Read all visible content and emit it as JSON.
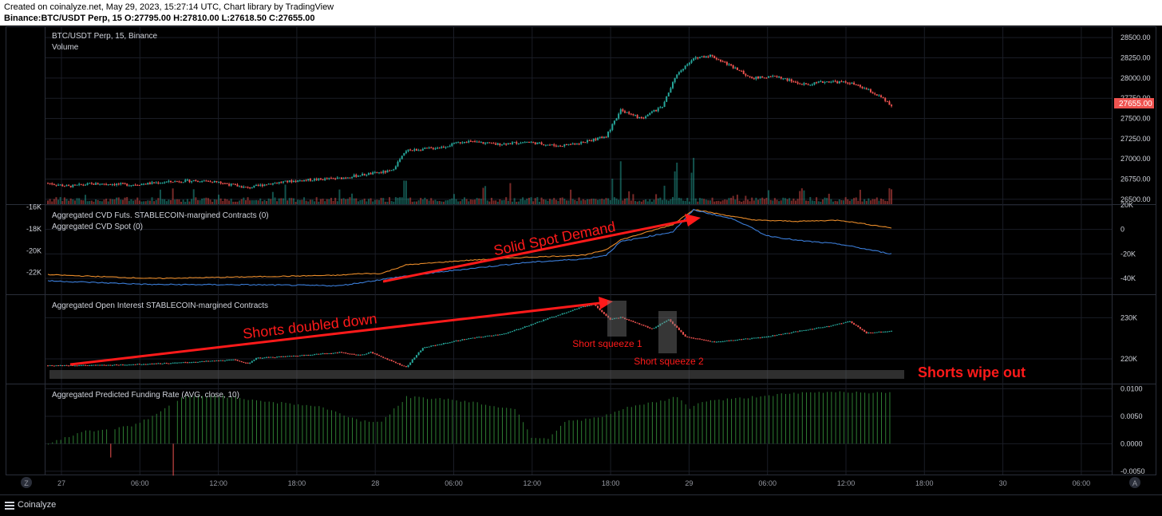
{
  "header": {
    "created": "Created on coinalyze.net, May 29, 2023, 15:27:14 UTC, Chart library by TradingView",
    "ohlc": "Binance:BTC/USDT Perp, 15 O:27795.00 H:27810.00 L:27618.50 C:27655.00"
  },
  "footer": {
    "brand": "Coinalyze",
    "z_button": "Z",
    "a_button": "A"
  },
  "colors": {
    "up": "#26a69a",
    "down": "#ef5350",
    "cvd_futs": "#e88b2a",
    "cvd_spot": "#3b7dd8",
    "annotation": "#ff1a1a",
    "funding": "#2e7d32"
  },
  "chart_data": [
    {
      "type": "candlestick",
      "pane": "price",
      "legend": [
        "BTC/USDT Perp, 15, Binance",
        "Volume"
      ],
      "y_ticks": [
        "28500.00",
        "28250.00",
        "28000.00",
        "27750.00",
        "27500.00",
        "27250.00",
        "27000.00",
        "26750.00",
        "26500.00"
      ],
      "ylim": [
        26440,
        28630
      ],
      "last_price_label": "27655.00",
      "x_ticks": [
        "27",
        "06:00",
        "12:00",
        "18:00",
        "28",
        "06:00",
        "12:00",
        "18:00",
        "29",
        "06:00",
        "12:00",
        "18:00",
        "30",
        "06:00"
      ],
      "price_path": [
        [
          0,
          26700
        ],
        [
          10,
          26660
        ],
        [
          20,
          26690
        ],
        [
          30,
          26690
        ],
        [
          40,
          26680
        ],
        [
          50,
          26700
        ],
        [
          60,
          26720
        ],
        [
          70,
          26730
        ],
        [
          80,
          26720
        ],
        [
          96,
          26640
        ],
        [
          105,
          26690
        ],
        [
          115,
          26720
        ],
        [
          125,
          26740
        ],
        [
          140,
          26760
        ],
        [
          150,
          26800
        ],
        [
          165,
          26850
        ],
        [
          172,
          27100
        ],
        [
          180,
          27120
        ],
        [
          190,
          27150
        ],
        [
          200,
          27220
        ],
        [
          215,
          27180
        ],
        [
          230,
          27210
        ],
        [
          245,
          27160
        ],
        [
          258,
          27210
        ],
        [
          268,
          27280
        ],
        [
          275,
          27600
        ],
        [
          285,
          27500
        ],
        [
          295,
          27650
        ],
        [
          302,
          28050
        ],
        [
          310,
          28250
        ],
        [
          318,
          28280
        ],
        [
          328,
          28150
        ],
        [
          338,
          28000
        ],
        [
          350,
          28020
        ],
        [
          362,
          27920
        ],
        [
          375,
          27960
        ],
        [
          385,
          27940
        ],
        [
          393,
          27860
        ],
        [
          400,
          27760
        ],
        [
          405,
          27655
        ]
      ],
      "volume_spikes": [
        [
          70,
          0.45
        ],
        [
          172,
          0.55
        ],
        [
          210,
          0.4
        ],
        [
          258,
          0.35
        ],
        [
          270,
          0.45
        ],
        [
          275,
          1.0
        ],
        [
          280,
          0.3
        ],
        [
          302,
          0.9
        ],
        [
          310,
          0.9
        ],
        [
          330,
          0.25
        ],
        [
          362,
          0.35
        ],
        [
          405,
          0.35
        ]
      ]
    },
    {
      "type": "line",
      "pane": "cvd",
      "series": [
        {
          "name": "Aggregated CVD Futs. STABLECOIN-margined Contracts (0)",
          "axis": "left",
          "values": [
            [
              0,
              -22200
            ],
            [
              50,
              -22550
            ],
            [
              96,
              -22400
            ],
            [
              140,
              -22250
            ],
            [
              150,
              -22100
            ],
            [
              160,
              -22100
            ],
            [
              172,
              -21300
            ],
            [
              200,
              -20900
            ],
            [
              230,
              -20600
            ],
            [
              258,
              -20400
            ],
            [
              268,
              -19900
            ],
            [
              275,
              -19000
            ],
            [
              300,
              -17600
            ],
            [
              310,
              -16200
            ],
            [
              330,
              -16900
            ],
            [
              340,
              -17200
            ],
            [
              360,
              -17300
            ],
            [
              380,
              -17200
            ],
            [
              405,
              -17900
            ]
          ]
        },
        {
          "name": "Aggregated CVD Spot (0)",
          "axis": "right",
          "values": [
            [
              0,
              -42000
            ],
            [
              50,
              -45000
            ],
            [
              96,
              -45200
            ],
            [
              140,
              -46000
            ],
            [
              172,
              -38000
            ],
            [
              200,
              -32500
            ],
            [
              230,
              -27000
            ],
            [
              258,
              -24000
            ],
            [
              268,
              -21000
            ],
            [
              275,
              -10000
            ],
            [
              300,
              -2000
            ],
            [
              310,
              16000
            ],
            [
              330,
              8000
            ],
            [
              345,
              -5000
            ],
            [
              360,
              -9000
            ],
            [
              380,
              -12000
            ],
            [
              405,
              -20000
            ]
          ]
        }
      ],
      "left_ticks": [
        "-16K",
        "-18K",
        "-20K",
        "-22K"
      ],
      "left_ylim": [
        -24000,
        -15800
      ],
      "right_ticks": [
        "20K",
        "0",
        "-20K",
        "-40K"
      ],
      "right_ylim": [
        -53000,
        20000
      ]
    },
    {
      "type": "candlestick",
      "pane": "open_interest",
      "legend": [
        "Aggregated Open Interest STABLECOIN-margined Contracts"
      ],
      "y_ticks": [
        "230K",
        "220K"
      ],
      "ylim": [
        214000,
        235500
      ],
      "oi_path": [
        [
          0,
          218400
        ],
        [
          30,
          218500
        ],
        [
          60,
          219000
        ],
        [
          90,
          219800
        ],
        [
          96,
          218800
        ],
        [
          100,
          220200
        ],
        [
          120,
          220800
        ],
        [
          140,
          221600
        ],
        [
          150,
          220900
        ],
        [
          155,
          221600
        ],
        [
          172,
          218000
        ],
        [
          180,
          222700
        ],
        [
          200,
          224800
        ],
        [
          220,
          226200
        ],
        [
          240,
          229800
        ],
        [
          256,
          232600
        ],
        [
          262,
          233300
        ],
        [
          270,
          229600
        ],
        [
          275,
          230100
        ],
        [
          290,
          227300
        ],
        [
          298,
          229600
        ],
        [
          306,
          225400
        ],
        [
          320,
          224100
        ],
        [
          345,
          225400
        ],
        [
          375,
          228000
        ],
        [
          385,
          229100
        ],
        [
          393,
          226300
        ],
        [
          405,
          226800
        ]
      ]
    },
    {
      "type": "bar",
      "pane": "funding",
      "legend": [
        "Aggregated Predicted Funding Rate (AVG, close, 10)"
      ],
      "y_ticks": [
        "0.0100",
        "0.0050",
        "0.0000",
        "-0.0050"
      ],
      "ylim": [
        -0.0056,
        0.0108
      ],
      "funding_path": [
        [
          0,
          0.0002
        ],
        [
          5,
          0.0008
        ],
        [
          10,
          0.0012
        ],
        [
          15,
          0.0022
        ],
        [
          25,
          0.0025
        ],
        [
          40,
          0.0032
        ],
        [
          50,
          0.005
        ],
        [
          65,
          0.0085
        ],
        [
          80,
          0.0088
        ],
        [
          95,
          0.0082
        ],
        [
          110,
          0.0075
        ],
        [
          130,
          0.0068
        ],
        [
          150,
          0.0042
        ],
        [
          160,
          0.004
        ],
        [
          172,
          0.0085
        ],
        [
          190,
          0.0082
        ],
        [
          205,
          0.0075
        ],
        [
          215,
          0.0068
        ],
        [
          225,
          0.0062
        ],
        [
          232,
          0.0012
        ],
        [
          240,
          0.001
        ],
        [
          248,
          0.004
        ],
        [
          265,
          0.0048
        ],
        [
          280,
          0.0068
        ],
        [
          295,
          0.0078
        ],
        [
          302,
          0.0086
        ],
        [
          308,
          0.0065
        ],
        [
          315,
          0.0078
        ],
        [
          330,
          0.0082
        ],
        [
          345,
          0.0088
        ],
        [
          360,
          0.0092
        ],
        [
          380,
          0.0095
        ],
        [
          405,
          0.0092
        ]
      ],
      "negative_bars": [
        [
          30,
          -0.0025
        ],
        [
          60,
          -0.0058
        ]
      ]
    }
  ],
  "annotations": {
    "solid_spot_demand": "Solid Spot Demand",
    "shorts_doubled_down": "Shorts doubled down",
    "short_squeeze_1": "Short squeeze 1",
    "short_squeeze_2": "Short squeeze 2",
    "shorts_wipe_out": "Shorts wipe out"
  }
}
